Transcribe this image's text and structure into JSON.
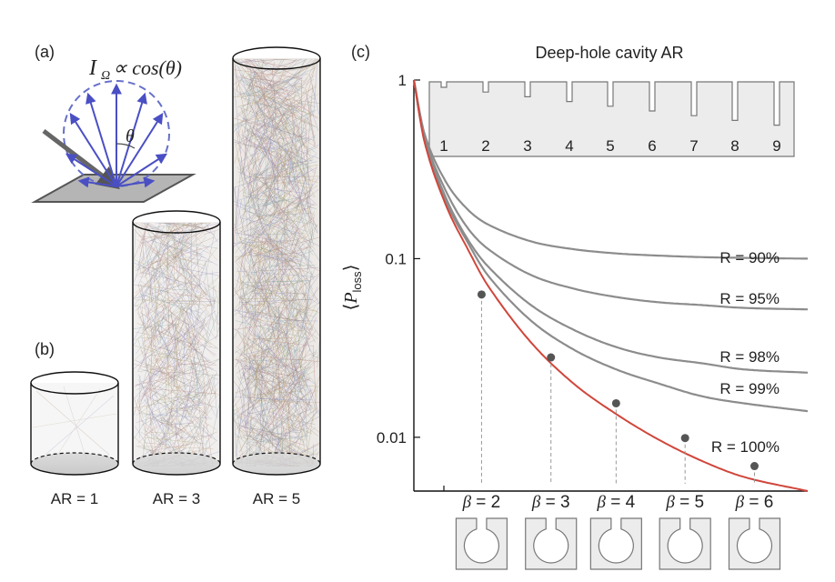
{
  "panels": {
    "a": {
      "label": "(a)",
      "formula": "I",
      "formula_sub": "Ω",
      "formula_rest": " ∝ cos(θ)",
      "angle_symbol": "θ"
    },
    "b": {
      "label": "(b)",
      "cylinders": [
        {
          "label": "AR = 1",
          "aspect_ratio": 1
        },
        {
          "label": "AR = 3",
          "aspect_ratio": 3
        },
        {
          "label": "AR = 5",
          "aspect_ratio": 5
        }
      ]
    },
    "c": {
      "label": "(c)",
      "top_axis_title": "Deep-hole cavity AR",
      "inset_numbers": [
        "1",
        "2",
        "3",
        "4",
        "5",
        "6",
        "7",
        "8",
        "9"
      ]
    }
  },
  "chart_data": {
    "type": "line",
    "title": "",
    "xlabel": "Deep-hole cavity AR",
    "ylabel": "⟨P_loss⟩",
    "ylabel_main": "P",
    "ylabel_sub": "loss",
    "y_scale": "log",
    "ylim": [
      0.005,
      1
    ],
    "xlim": [
      0.25,
      9.5
    ],
    "y_ticks": [
      {
        "value": 1,
        "label": "1"
      },
      {
        "value": 0.1,
        "label": "0.1"
      },
      {
        "value": 0.01,
        "label": "0.01"
      }
    ],
    "x_ticks": [
      1
    ],
    "grid": false,
    "series": [
      {
        "name": "R = 90%",
        "R": 0.9,
        "color": "#8c8c8c",
        "x": [
          0.25,
          0.5,
          1,
          1.5,
          2,
          3,
          4,
          5,
          6,
          7,
          8,
          9.5
        ],
        "y": [
          1,
          0.5,
          0.27,
          0.19,
          0.155,
          0.125,
          0.113,
          0.107,
          0.104,
          0.102,
          0.101,
          0.1
        ]
      },
      {
        "name": "R = 95%",
        "R": 0.95,
        "color": "#8c8c8c",
        "x": [
          0.25,
          0.5,
          1,
          1.5,
          2,
          3,
          4,
          5,
          6,
          7,
          8,
          9.5
        ],
        "y": [
          1,
          0.48,
          0.24,
          0.15,
          0.113,
          0.081,
          0.068,
          0.061,
          0.057,
          0.055,
          0.053,
          0.052
        ]
      },
      {
        "name": "R = 98%",
        "R": 0.98,
        "color": "#8c8c8c",
        "x": [
          0.25,
          0.5,
          1,
          1.5,
          2,
          3,
          4,
          5,
          6,
          7,
          8,
          9.5
        ],
        "y": [
          1,
          0.47,
          0.22,
          0.13,
          0.09,
          0.055,
          0.04,
          0.032,
          0.028,
          0.026,
          0.024,
          0.023
        ]
      },
      {
        "name": "R = 99%",
        "R": 0.99,
        "color": "#8c8c8c",
        "x": [
          0.25,
          0.5,
          1,
          1.5,
          2,
          3,
          4,
          5,
          6,
          7,
          8,
          9.5
        ],
        "y": [
          1,
          0.46,
          0.21,
          0.125,
          0.08,
          0.045,
          0.031,
          0.024,
          0.02,
          0.017,
          0.0155,
          0.014
        ]
      },
      {
        "name": "R = 100%",
        "R": 1.0,
        "color": "#d0463b",
        "x": [
          0.25,
          0.5,
          1,
          1.5,
          2,
          3,
          4,
          5,
          6,
          7,
          8,
          9.5
        ],
        "y": [
          1,
          0.45,
          0.2,
          0.115,
          0.07,
          0.034,
          0.02,
          0.0135,
          0.0097,
          0.0074,
          0.006,
          0.005
        ]
      }
    ],
    "markers": [
      {
        "label_prefix": "β",
        "label": " = 2",
        "beta": 2,
        "x": 1.84,
        "y": 0.063
      },
      {
        "label_prefix": "β",
        "label": " = 3",
        "beta": 3,
        "x": 3.47,
        "y": 0.028
      },
      {
        "label_prefix": "β",
        "label": " = 4",
        "beta": 4,
        "x": 5.0,
        "y": 0.0155
      },
      {
        "label_prefix": "β",
        "label": " = 5",
        "beta": 5,
        "x": 6.62,
        "y": 0.0099
      },
      {
        "label_prefix": "β",
        "label": " = 6",
        "beta": 6,
        "x": 8.25,
        "y": 0.0069
      }
    ],
    "marker_color": "#555555"
  }
}
